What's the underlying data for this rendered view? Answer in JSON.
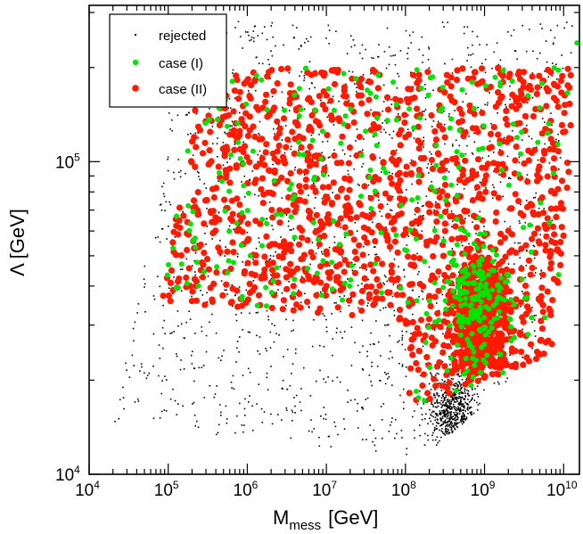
{
  "chart_data": {
    "type": "scatter",
    "title": "",
    "xlabel": {
      "main": "M",
      "sub": "mess",
      "unit": "[GeV]"
    },
    "ylabel": "Λ [GeV]",
    "xscale": "log",
    "yscale": "log",
    "xlim_log10": [
      4,
      10.2
    ],
    "ylim_log10": [
      4,
      5.5
    ],
    "xticks": [
      {
        "base": "10",
        "exp": "4"
      },
      {
        "base": "10",
        "exp": "5"
      },
      {
        "base": "10",
        "exp": "6"
      },
      {
        "base": "10",
        "exp": "7"
      },
      {
        "base": "10",
        "exp": "8"
      },
      {
        "base": "10",
        "exp": "9"
      },
      {
        "base": "10",
        "exp": "10"
      }
    ],
    "yticks": [
      {
        "base": "10",
        "exp": "4"
      },
      {
        "base": "10",
        "exp": "5"
      }
    ],
    "legend_position": "top-left",
    "series": [
      {
        "name": "rejected",
        "color": "#000000",
        "marker": "dot",
        "note": "approximately 2500 points spread over the whole allowed band",
        "region": {
          "xmin_log10": 4.3,
          "xmax_log10": 10.15,
          "ymin_log10": 4.05,
          "ymax_log10": 5.45
        }
      },
      {
        "name": "case (I)",
        "color": "#00e400",
        "marker": "circle",
        "note": "approximately 320 points",
        "region": {
          "xmin_log10": 4.8,
          "xmax_log10": 10.2,
          "ymin_log10": 4.2,
          "ymax_log10": 5.4
        }
      },
      {
        "name": "case (II)",
        "color": "#ff1a00",
        "marker": "circle",
        "note": "approximately 1500 points, dense cluster near M_mess 1e9 GeV and Lambda 3e4 GeV",
        "region": {
          "xmin_log10": 4.9,
          "xmax_log10": 10.15,
          "ymin_log10": 4.2,
          "ymax_log10": 5.35
        }
      }
    ],
    "legend": [
      "rejected",
      "case (I)",
      "case (II)"
    ]
  }
}
